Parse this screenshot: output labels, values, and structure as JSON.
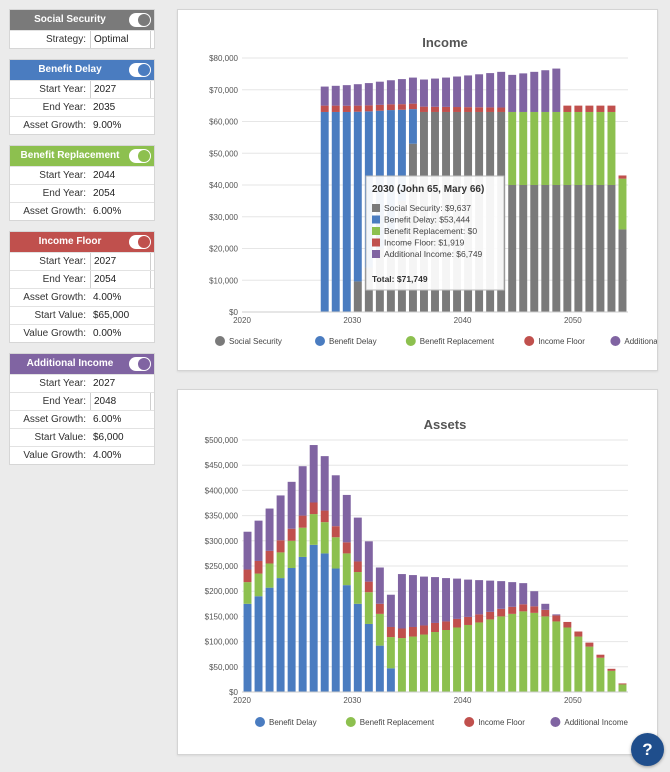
{
  "colors": {
    "social_security": "#7a7a7a",
    "benefit_delay": "#4a7cc0",
    "benefit_replacement": "#8dc04f",
    "income_floor": "#c0504d",
    "additional_income": "#8064a2"
  },
  "sidebar": {
    "social_security": {
      "title": "Social Security",
      "rows": [
        {
          "label": "Strategy:",
          "value": "Optimal"
        }
      ]
    },
    "benefit_delay": {
      "title": "Benefit Delay",
      "rows": [
        {
          "label": "Start Year:",
          "value": "2027"
        },
        {
          "label": "End Year:",
          "value": "2035"
        },
        {
          "label": "Asset Growth:",
          "value": "9.00%"
        }
      ]
    },
    "benefit_replacement": {
      "title": "Benefit Replacement",
      "rows": [
        {
          "label": "Start Year:",
          "value": "2044"
        },
        {
          "label": "End Year:",
          "value": "2054"
        },
        {
          "label": "Asset Growth:",
          "value": "6.00%"
        }
      ]
    },
    "income_floor": {
      "title": "Income Floor",
      "rows": [
        {
          "label": "Start Year:",
          "value": "2027"
        },
        {
          "label": "End Year:",
          "value": "2054"
        },
        {
          "label": "Asset Growth:",
          "value": "4.00%"
        },
        {
          "label": "Start Value:",
          "value": "$65,000"
        },
        {
          "label": "Value Growth:",
          "value": "0.00%"
        }
      ]
    },
    "additional_income": {
      "title": "Additional Income",
      "rows": [
        {
          "label": "Start Year:",
          "value": "2027"
        },
        {
          "label": "End Year:",
          "value": "2048"
        },
        {
          "label": "Asset Growth:",
          "value": "6.00%"
        },
        {
          "label": "Start Value:",
          "value": "$6,000"
        },
        {
          "label": "Value Growth:",
          "value": "4.00%"
        }
      ]
    }
  },
  "help_label": "?",
  "chart_data": [
    {
      "type": "bar",
      "stacked": true,
      "title": "Income",
      "x": [
        2020,
        2021,
        2022,
        2023,
        2024,
        2025,
        2026,
        2027,
        2028,
        2029,
        2030,
        2031,
        2032,
        2033,
        2034,
        2035,
        2036,
        2037,
        2038,
        2039,
        2040,
        2041,
        2042,
        2043,
        2044,
        2045,
        2046,
        2047,
        2048,
        2049,
        2050,
        2051,
        2052,
        2053,
        2054
      ],
      "x_ticks": [
        "2020",
        "2030",
        "2040",
        "2050"
      ],
      "y_ticks": [
        "$0",
        "$10,000",
        "$20,000",
        "$30,000",
        "$40,000",
        "$50,000",
        "$60,000",
        "$70,000",
        "$80,000"
      ],
      "ylim": [
        0,
        80000
      ],
      "series": [
        {
          "name": "Social Security",
          "key": "social_security",
          "values": [
            0,
            0,
            0,
            0,
            0,
            0,
            0,
            0,
            0,
            0,
            9637,
            14000,
            20000,
            26000,
            35000,
            53000,
            63000,
            63000,
            63000,
            63000,
            63000,
            63000,
            63000,
            63000,
            40000,
            40000,
            40000,
            40000,
            40000,
            40000,
            40000,
            40000,
            40000,
            40000,
            26000
          ]
        },
        {
          "name": "Benefit Delay",
          "key": "benefit_delay",
          "values": [
            0,
            0,
            0,
            0,
            0,
            0,
            0,
            63000,
            63000,
            63000,
            53444,
            49200,
            43400,
            37600,
            28700,
            10900,
            0,
            0,
            0,
            0,
            0,
            0,
            0,
            0,
            0,
            0,
            0,
            0,
            0,
            0,
            0,
            0,
            0,
            0,
            0
          ]
        },
        {
          "name": "Benefit Replacement",
          "key": "benefit_replacement",
          "values": [
            0,
            0,
            0,
            0,
            0,
            0,
            0,
            0,
            0,
            0,
            0,
            0,
            0,
            0,
            0,
            0,
            0,
            0,
            0,
            0,
            0,
            0,
            0,
            0,
            23000,
            23000,
            23000,
            23000,
            23000,
            23000,
            23000,
            23000,
            23000,
            23000,
            16000
          ]
        },
        {
          "name": "Income Floor",
          "key": "income_floor",
          "values": [
            0,
            0,
            0,
            0,
            0,
            0,
            0,
            2000,
            2000,
            1960,
            1919,
            1880,
            1840,
            1800,
            1760,
            1720,
            1680,
            1640,
            1600,
            1560,
            1520,
            1480,
            1440,
            1400,
            0,
            0,
            0,
            0,
            0,
            2000,
            2000,
            2000,
            2000,
            2000,
            1000
          ]
        },
        {
          "name": "Additional Income",
          "key": "additional_income",
          "values": [
            0,
            0,
            0,
            0,
            0,
            0,
            0,
            6000,
            6240,
            6490,
            6749,
            7019,
            7300,
            7592,
            7895,
            8211,
            8540,
            8881,
            9237,
            9606,
            9990,
            10390,
            10805,
            11238,
            11687,
            12155,
            12641,
            13147,
            13672,
            0,
            0,
            0,
            0,
            0,
            0
          ]
        }
      ],
      "tooltip": {
        "title": "2030 (John 65, Mary 66)",
        "lines": [
          {
            "key": "social_security",
            "text": "Social Security: $9,637"
          },
          {
            "key": "benefit_delay",
            "text": "Benefit Delay: $53,444"
          },
          {
            "key": "benefit_replacement",
            "text": "Benefit Replacement: $0"
          },
          {
            "key": "income_floor",
            "text": "Income Floor: $1,919"
          },
          {
            "key": "additional_income",
            "text": "Additional Income: $6,749"
          }
        ],
        "total": "Total: $71,749"
      },
      "legend": [
        {
          "key": "social_security",
          "label": "Social Security"
        },
        {
          "key": "benefit_delay",
          "label": "Benefit Delay"
        },
        {
          "key": "benefit_replacement",
          "label": "Benefit Replacement"
        },
        {
          "key": "income_floor",
          "label": "Income Floor"
        },
        {
          "key": "additional_income",
          "label": "Additional Income"
        }
      ]
    },
    {
      "type": "bar",
      "stacked": true,
      "title": "Assets",
      "x": [
        2020,
        2021,
        2022,
        2023,
        2024,
        2025,
        2026,
        2027,
        2028,
        2029,
        2030,
        2031,
        2032,
        2033,
        2034,
        2035,
        2036,
        2037,
        2038,
        2039,
        2040,
        2041,
        2042,
        2043,
        2044,
        2045,
        2046,
        2047,
        2048,
        2049,
        2050,
        2051,
        2052,
        2053,
        2054
      ],
      "x_ticks": [
        "2020",
        "2030",
        "2040",
        "2050"
      ],
      "y_ticks": [
        "$0",
        "$50,000",
        "$100,000",
        "$150,000",
        "$200,000",
        "$250,000",
        "$300,000",
        "$350,000",
        "$400,000",
        "$450,000",
        "$500,000"
      ],
      "ylim": [
        0,
        500000
      ],
      "series": [
        {
          "name": "Benefit Delay",
          "key": "benefit_delay",
          "values": [
            175000,
            190000,
            207000,
            226000,
            246000,
            268000,
            292000,
            275000,
            245000,
            212000,
            175000,
            135000,
            92000,
            47000,
            0,
            0,
            0,
            0,
            0,
            0,
            0,
            0,
            0,
            0,
            0,
            0,
            0,
            0,
            0,
            0,
            0,
            0,
            0,
            0,
            0
          ]
        },
        {
          "name": "Benefit Replacement",
          "key": "benefit_replacement",
          "values": [
            43000,
            45000,
            48000,
            51000,
            54000,
            58000,
            61000,
            62000,
            62000,
            63000,
            63000,
            63000,
            63000,
            62000,
            107000,
            110000,
            114000,
            119000,
            123000,
            128000,
            133000,
            138000,
            144000,
            150000,
            155000,
            160000,
            157000,
            150000,
            140000,
            128000,
            110000,
            90000,
            68000,
            42000,
            15000
          ]
        },
        {
          "name": "Income Floor",
          "key": "income_floor",
          "values": [
            25000,
            25000,
            25000,
            24000,
            24000,
            24000,
            23000,
            23000,
            22000,
            22000,
            21000,
            21000,
            20000,
            20000,
            19000,
            19000,
            18000,
            18000,
            17000,
            17000,
            16000,
            16000,
            15000,
            15000,
            14000,
            14000,
            13000,
            13000,
            12000,
            11000,
            10000,
            8000,
            6000,
            4000,
            2000
          ]
        },
        {
          "name": "Additional Income",
          "key": "additional_income",
          "values": [
            75000,
            80000,
            84000,
            89000,
            93000,
            98000,
            114000,
            108000,
            101000,
            94000,
            87000,
            80000,
            72000,
            64000,
            108000,
            103000,
            97000,
            91000,
            86000,
            80000,
            74000,
            68000,
            62000,
            55000,
            49000,
            42000,
            30000,
            12000,
            2000,
            0,
            0,
            0,
            0,
            0,
            0
          ]
        }
      ],
      "legend": [
        {
          "key": "benefit_delay",
          "label": "Benefit Delay"
        },
        {
          "key": "benefit_replacement",
          "label": "Benefit Replacement"
        },
        {
          "key": "income_floor",
          "label": "Income Floor"
        },
        {
          "key": "additional_income",
          "label": "Additional Income"
        }
      ]
    }
  ]
}
